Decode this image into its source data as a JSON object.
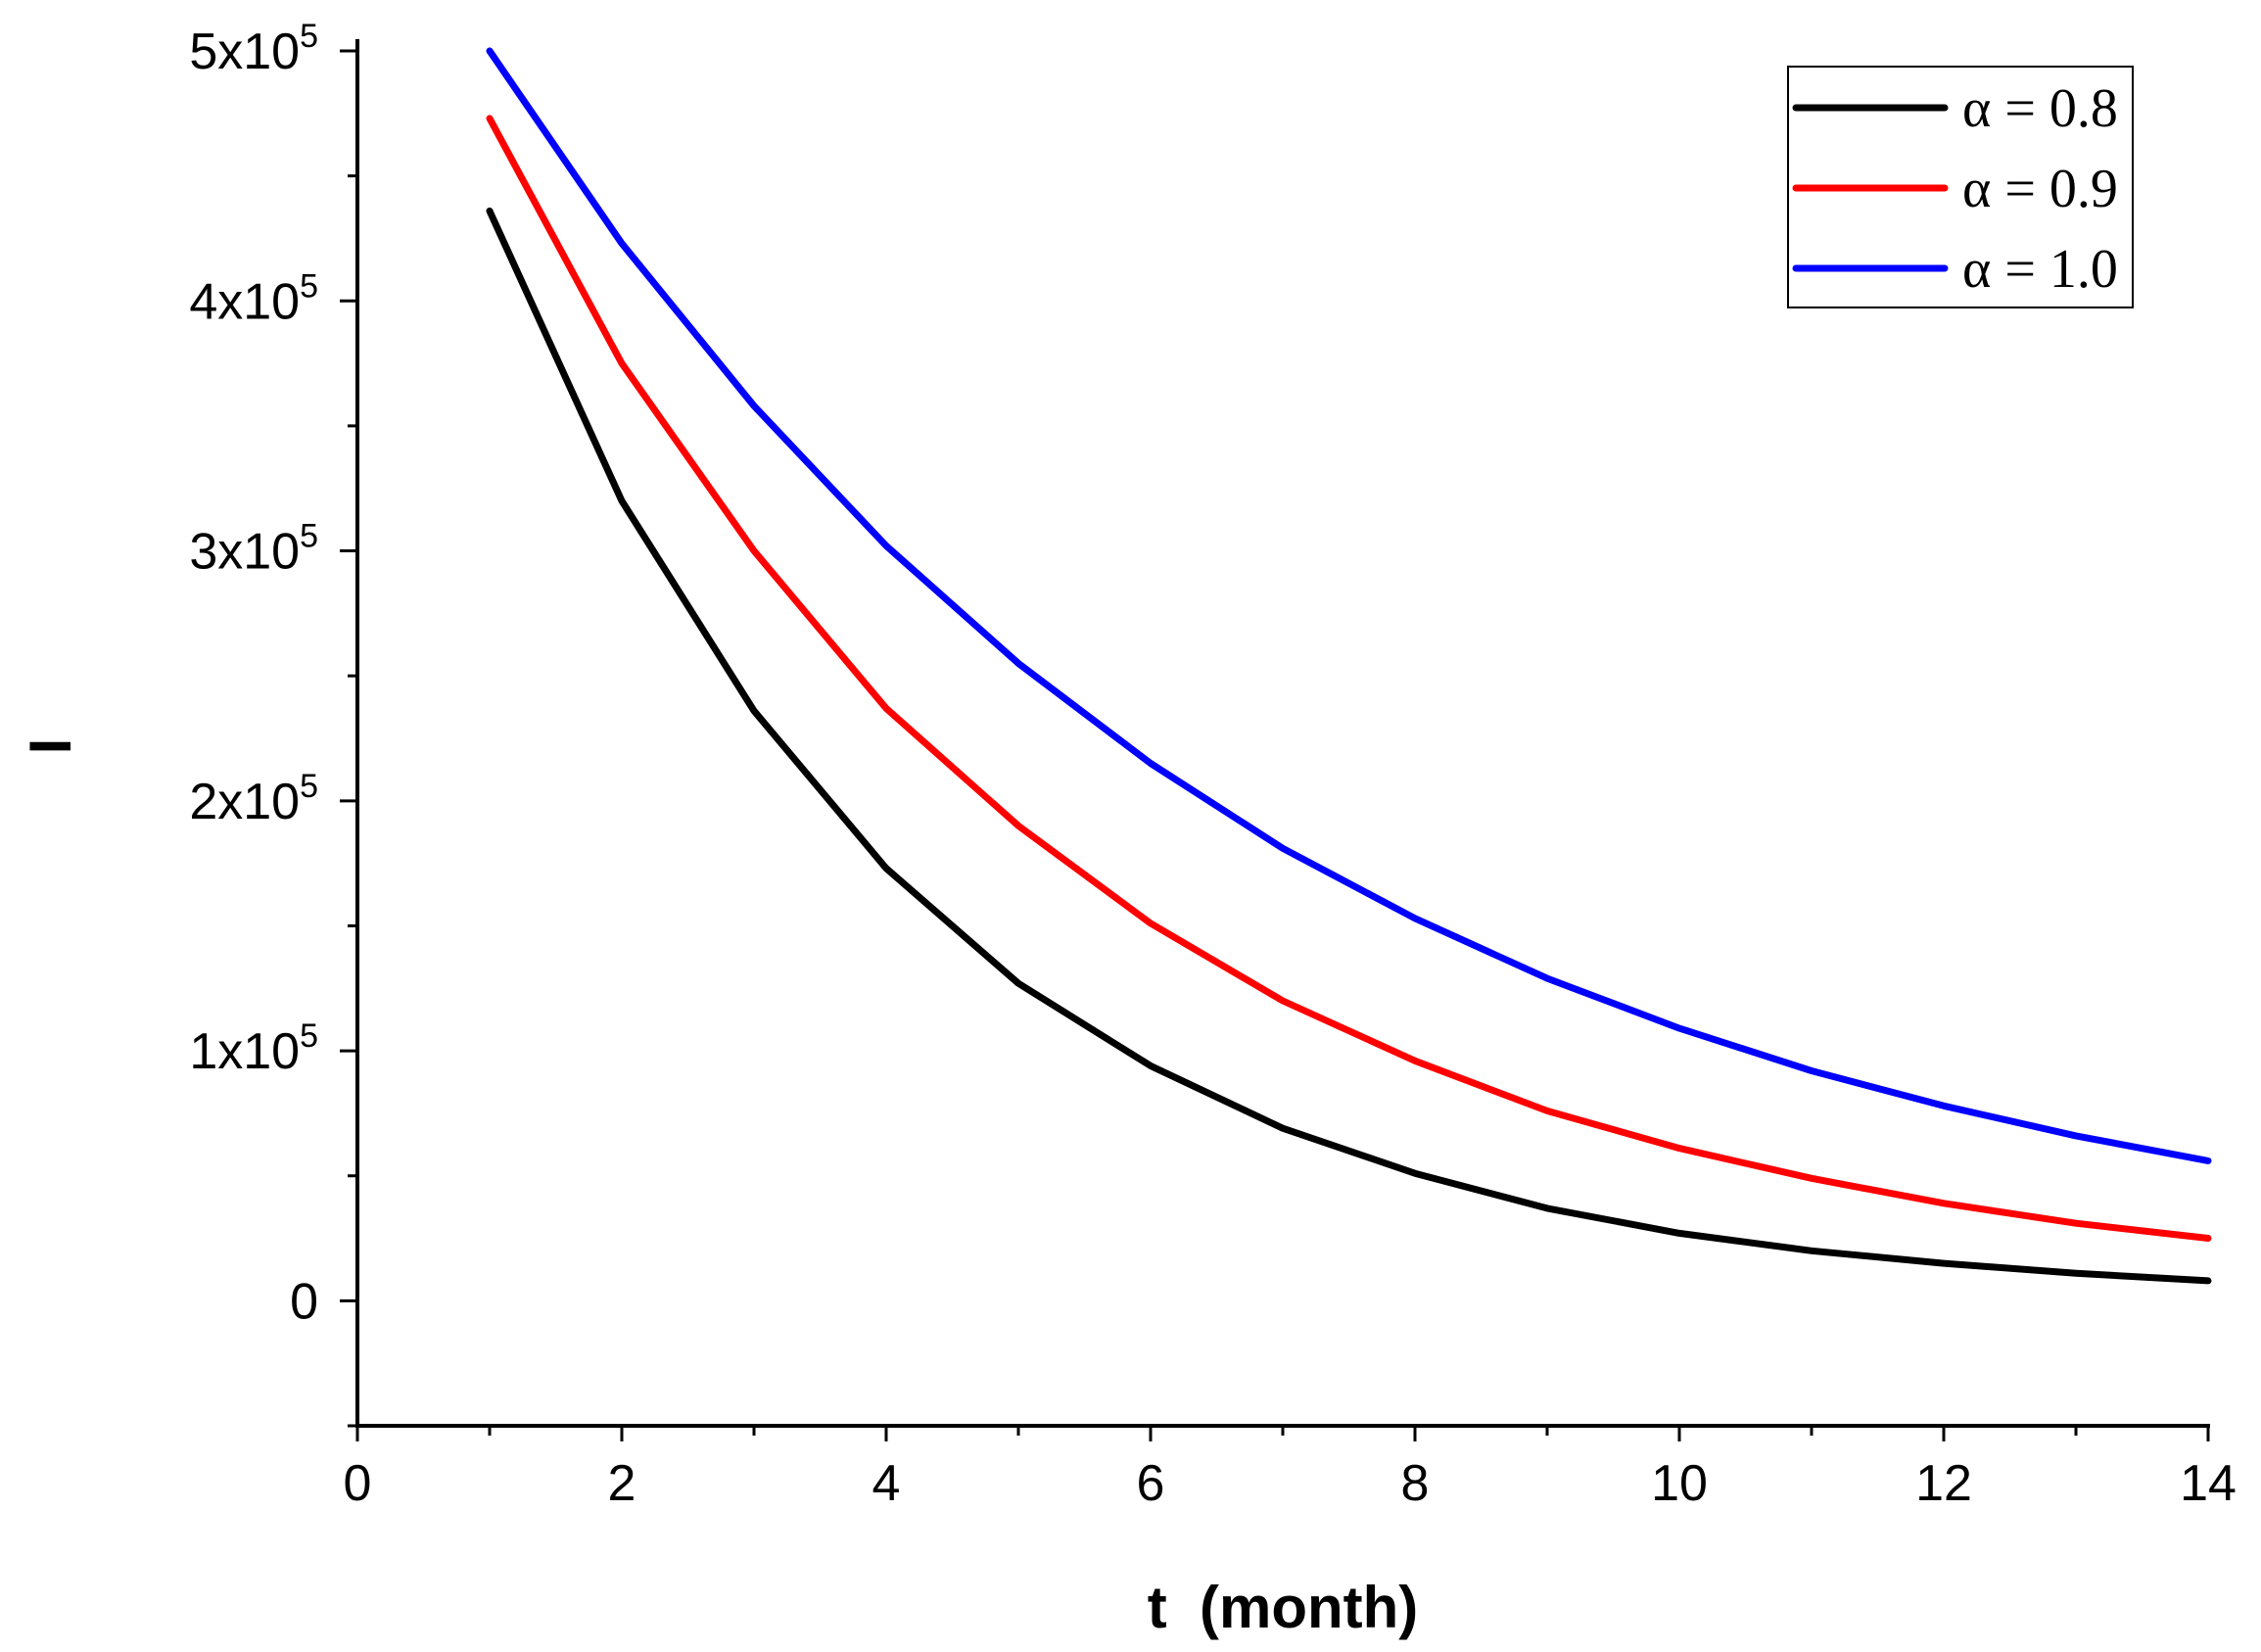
{
  "chart_data": {
    "type": "line",
    "title": "",
    "xlabel": "t  (month)",
    "ylabel": "I",
    "xlim": [
      0,
      14
    ],
    "ylim": [
      -50000,
      500000
    ],
    "x": [
      1,
      2,
      3,
      4,
      5,
      6,
      7,
      8,
      9,
      10,
      11,
      12,
      13,
      14
    ],
    "x_ticks": [
      0,
      2,
      4,
      6,
      8,
      10,
      12,
      14
    ],
    "x_tick_labels": [
      "0",
      "2",
      "4",
      "6",
      "8",
      "10",
      "12",
      "14"
    ],
    "y_ticks": [
      0,
      100000,
      200000,
      300000,
      400000,
      500000
    ],
    "y_tick_labels": [
      {
        "mantissa": "0",
        "exponent": ""
      },
      {
        "mantissa": "1x10",
        "exponent": "5"
      },
      {
        "mantissa": "2x10",
        "exponent": "5"
      },
      {
        "mantissa": "3x10",
        "exponent": "5"
      },
      {
        "mantissa": "4x10",
        "exponent": "5"
      },
      {
        "mantissa": "5x10",
        "exponent": "5"
      }
    ],
    "grid": false,
    "legend_position": "top-right",
    "series": [
      {
        "name": "α = 0.8",
        "color": "#000000",
        "values": [
          436000,
          320000,
          236000,
          173000,
          127000,
          94000,
          69000,
          51000,
          37000,
          27000,
          20000,
          15000,
          11000,
          8000
        ]
      },
      {
        "name": "α = 0.9",
        "color": "#ff0000",
        "values": [
          473000,
          375000,
          300000,
          237000,
          190000,
          151000,
          120000,
          96000,
          76000,
          61000,
          49000,
          39000,
          31000,
          25000
        ]
      },
      {
        "name": "α = 1.0",
        "color": "#0000ff",
        "values": [
          500000,
          423000,
          358000,
          302000,
          255000,
          215000,
          181000,
          153000,
          129000,
          109000,
          92000,
          78000,
          66000,
          56000
        ]
      }
    ]
  }
}
